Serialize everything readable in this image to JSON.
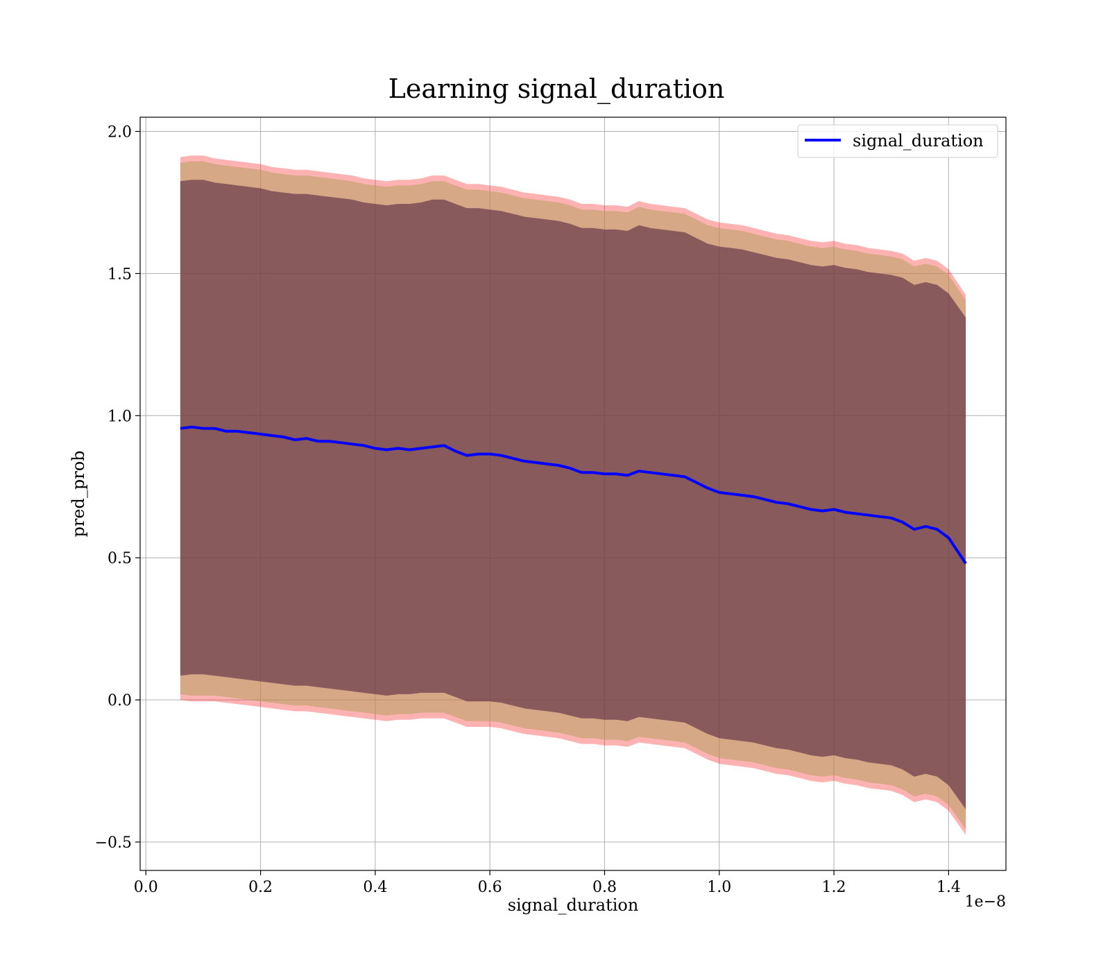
{
  "chart_data": {
    "type": "line",
    "title": "Learning signal_duration",
    "xlabel": "signal_duration",
    "ylabel": "pred_prob",
    "x_offset_label": "1e−8",
    "xlim": [
      -0.01,
      1.5
    ],
    "ylim": [
      -0.6,
      2.05
    ],
    "xticks": [
      0.0,
      0.2,
      0.4,
      0.6,
      0.8,
      1.0,
      1.2,
      1.4
    ],
    "xtick_labels": [
      "0.0",
      "0.2",
      "0.4",
      "0.6",
      "0.8",
      "1.0",
      "1.2",
      "1.4"
    ],
    "yticks": [
      -0.5,
      0.0,
      0.5,
      1.0,
      1.5,
      2.0
    ],
    "ytick_labels": [
      "−0.5",
      "0.0",
      "0.5",
      "1.0",
      "1.5",
      "2.0"
    ],
    "grid": true,
    "legend": {
      "position": "top-right",
      "entries": [
        "signal_duration"
      ]
    },
    "x": [
      0.06,
      0.08,
      0.1,
      0.12,
      0.14,
      0.16,
      0.18,
      0.2,
      0.22,
      0.24,
      0.26,
      0.28,
      0.3,
      0.32,
      0.34,
      0.36,
      0.38,
      0.4,
      0.42,
      0.44,
      0.46,
      0.48,
      0.5,
      0.52,
      0.54,
      0.56,
      0.58,
      0.6,
      0.62,
      0.64,
      0.66,
      0.68,
      0.7,
      0.72,
      0.74,
      0.76,
      0.78,
      0.8,
      0.82,
      0.84,
      0.86,
      0.88,
      0.9,
      0.92,
      0.94,
      0.96,
      0.98,
      1.0,
      1.02,
      1.04,
      1.06,
      1.08,
      1.1,
      1.12,
      1.14,
      1.16,
      1.18,
      1.2,
      1.22,
      1.24,
      1.26,
      1.28,
      1.3,
      1.32,
      1.34,
      1.36,
      1.38,
      1.4,
      1.43
    ],
    "series": [
      {
        "name": "signal_duration",
        "color": "#0000ff",
        "values": [
          0.955,
          0.96,
          0.955,
          0.955,
          0.945,
          0.945,
          0.94,
          0.935,
          0.93,
          0.925,
          0.915,
          0.92,
          0.91,
          0.91,
          0.905,
          0.9,
          0.895,
          0.885,
          0.88,
          0.885,
          0.88,
          0.885,
          0.89,
          0.895,
          0.875,
          0.86,
          0.865,
          0.865,
          0.86,
          0.85,
          0.84,
          0.835,
          0.83,
          0.825,
          0.815,
          0.8,
          0.8,
          0.795,
          0.795,
          0.79,
          0.805,
          0.8,
          0.795,
          0.79,
          0.785,
          0.765,
          0.745,
          0.73,
          0.725,
          0.72,
          0.715,
          0.705,
          0.695,
          0.69,
          0.68,
          0.67,
          0.665,
          0.67,
          0.66,
          0.655,
          0.65,
          0.645,
          0.64,
          0.625,
          0.6,
          0.61,
          0.6,
          0.57,
          0.48
        ]
      }
    ],
    "band_outer": {
      "color": "#ff0000",
      "upper": [
        1.91,
        1.915,
        1.915,
        1.905,
        1.9,
        1.895,
        1.89,
        1.885,
        1.875,
        1.87,
        1.865,
        1.865,
        1.86,
        1.855,
        1.85,
        1.845,
        1.835,
        1.83,
        1.825,
        1.83,
        1.83,
        1.835,
        1.845,
        1.845,
        1.83,
        1.815,
        1.815,
        1.81,
        1.805,
        1.795,
        1.785,
        1.78,
        1.775,
        1.77,
        1.76,
        1.745,
        1.745,
        1.74,
        1.74,
        1.735,
        1.755,
        1.745,
        1.74,
        1.735,
        1.73,
        1.71,
        1.69,
        1.68,
        1.675,
        1.67,
        1.66,
        1.65,
        1.64,
        1.635,
        1.625,
        1.615,
        1.61,
        1.615,
        1.605,
        1.6,
        1.59,
        1.585,
        1.58,
        1.57,
        1.545,
        1.555,
        1.545,
        1.515,
        1.425
      ],
      "lower": [
        0.0,
        -0.005,
        -0.005,
        -0.005,
        -0.01,
        -0.015,
        -0.02,
        -0.025,
        -0.03,
        -0.035,
        -0.04,
        -0.04,
        -0.045,
        -0.05,
        -0.055,
        -0.06,
        -0.065,
        -0.07,
        -0.075,
        -0.07,
        -0.07,
        -0.065,
        -0.065,
        -0.065,
        -0.08,
        -0.095,
        -0.095,
        -0.095,
        -0.1,
        -0.11,
        -0.12,
        -0.125,
        -0.13,
        -0.135,
        -0.145,
        -0.155,
        -0.155,
        -0.16,
        -0.16,
        -0.165,
        -0.15,
        -0.155,
        -0.16,
        -0.165,
        -0.17,
        -0.19,
        -0.21,
        -0.225,
        -0.23,
        -0.235,
        -0.24,
        -0.25,
        -0.26,
        -0.265,
        -0.275,
        -0.285,
        -0.29,
        -0.285,
        -0.295,
        -0.3,
        -0.31,
        -0.315,
        -0.32,
        -0.335,
        -0.36,
        -0.35,
        -0.36,
        -0.39,
        -0.475
      ]
    },
    "band_mid": {
      "color": "#b5a060",
      "upper": [
        1.89,
        1.895,
        1.895,
        1.885,
        1.88,
        1.875,
        1.87,
        1.865,
        1.855,
        1.85,
        1.845,
        1.845,
        1.84,
        1.835,
        1.83,
        1.825,
        1.815,
        1.81,
        1.805,
        1.81,
        1.81,
        1.815,
        1.825,
        1.825,
        1.81,
        1.795,
        1.795,
        1.79,
        1.785,
        1.775,
        1.765,
        1.76,
        1.755,
        1.75,
        1.74,
        1.725,
        1.725,
        1.72,
        1.72,
        1.715,
        1.735,
        1.725,
        1.72,
        1.715,
        1.71,
        1.69,
        1.67,
        1.66,
        1.655,
        1.65,
        1.64,
        1.63,
        1.62,
        1.615,
        1.605,
        1.595,
        1.59,
        1.595,
        1.585,
        1.58,
        1.57,
        1.565,
        1.56,
        1.55,
        1.525,
        1.535,
        1.525,
        1.495,
        1.405
      ],
      "lower": [
        0.02,
        0.015,
        0.015,
        0.015,
        0.01,
        0.005,
        0.0,
        -0.005,
        -0.01,
        -0.015,
        -0.02,
        -0.02,
        -0.025,
        -0.03,
        -0.035,
        -0.04,
        -0.045,
        -0.05,
        -0.055,
        -0.05,
        -0.05,
        -0.045,
        -0.045,
        -0.045,
        -0.06,
        -0.075,
        -0.075,
        -0.075,
        -0.08,
        -0.09,
        -0.1,
        -0.105,
        -0.11,
        -0.115,
        -0.125,
        -0.135,
        -0.135,
        -0.14,
        -0.14,
        -0.145,
        -0.13,
        -0.135,
        -0.14,
        -0.145,
        -0.15,
        -0.17,
        -0.19,
        -0.205,
        -0.21,
        -0.215,
        -0.22,
        -0.23,
        -0.24,
        -0.245,
        -0.255,
        -0.265,
        -0.27,
        -0.265,
        -0.275,
        -0.28,
        -0.29,
        -0.295,
        -0.3,
        -0.315,
        -0.34,
        -0.33,
        -0.34,
        -0.37,
        -0.455
      ]
    },
    "band_inner": {
      "color": "#4a1a3a",
      "upper": [
        1.825,
        1.83,
        1.83,
        1.82,
        1.815,
        1.81,
        1.805,
        1.8,
        1.79,
        1.785,
        1.78,
        1.78,
        1.775,
        1.77,
        1.765,
        1.76,
        1.75,
        1.745,
        1.74,
        1.745,
        1.745,
        1.75,
        1.76,
        1.76,
        1.745,
        1.73,
        1.73,
        1.725,
        1.72,
        1.71,
        1.7,
        1.695,
        1.69,
        1.685,
        1.675,
        1.66,
        1.66,
        1.655,
        1.655,
        1.65,
        1.67,
        1.66,
        1.655,
        1.65,
        1.645,
        1.625,
        1.605,
        1.595,
        1.59,
        1.585,
        1.575,
        1.565,
        1.555,
        1.55,
        1.54,
        1.53,
        1.525,
        1.53,
        1.52,
        1.515,
        1.505,
        1.5,
        1.495,
        1.485,
        1.46,
        1.47,
        1.46,
        1.43,
        1.345
      ],
      "lower": [
        0.085,
        0.09,
        0.09,
        0.085,
        0.08,
        0.075,
        0.07,
        0.065,
        0.06,
        0.055,
        0.05,
        0.05,
        0.045,
        0.04,
        0.035,
        0.03,
        0.025,
        0.02,
        0.015,
        0.02,
        0.02,
        0.025,
        0.025,
        0.025,
        0.01,
        -0.005,
        -0.005,
        -0.005,
        -0.01,
        -0.02,
        -0.03,
        -0.035,
        -0.04,
        -0.045,
        -0.055,
        -0.065,
        -0.065,
        -0.07,
        -0.07,
        -0.075,
        -0.06,
        -0.065,
        -0.07,
        -0.075,
        -0.08,
        -0.1,
        -0.12,
        -0.135,
        -0.14,
        -0.145,
        -0.15,
        -0.16,
        -0.17,
        -0.175,
        -0.185,
        -0.195,
        -0.2,
        -0.195,
        -0.205,
        -0.21,
        -0.22,
        -0.225,
        -0.23,
        -0.245,
        -0.27,
        -0.26,
        -0.27,
        -0.3,
        -0.385
      ]
    }
  }
}
